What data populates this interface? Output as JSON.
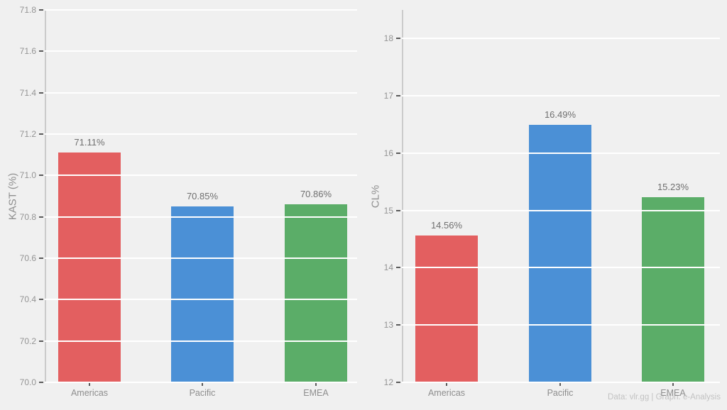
{
  "palette": {
    "background": "#f0f0f0",
    "grid": "#ffffff",
    "spine": "#cbcbcb",
    "tick_text": "#949494",
    "value_text": "#6f6f6f",
    "watermark_text": "#c2c2c2",
    "region_colors": {
      "Americas": "#e35f60",
      "Pacific": "#4b90d6",
      "EMEA": "#5bad68"
    }
  },
  "footer": {
    "text": "Data: vlr.gg | Graph: e-Analysis"
  },
  "chart_data": [
    {
      "type": "bar",
      "title": "",
      "xlabel": "",
      "ylabel": "KAST  (%)",
      "categories": [
        "Americas",
        "Pacific",
        "EMEA"
      ],
      "values": [
        71.11,
        70.85,
        70.86
      ],
      "value_labels": [
        "71.11%",
        "70.85%",
        "70.86%"
      ],
      "bar_colors": [
        "#e35f60",
        "#4b90d6",
        "#5bad68"
      ],
      "ylim": [
        70.0,
        71.8
      ],
      "yticks": [
        {
          "value": 70.0,
          "label": "70.0"
        },
        {
          "value": 70.2,
          "label": "70.2"
        },
        {
          "value": 70.4,
          "label": "70.4"
        },
        {
          "value": 70.6,
          "label": "70.6"
        },
        {
          "value": 70.8,
          "label": "70.8"
        },
        {
          "value": 71.0,
          "label": "71.0"
        },
        {
          "value": 71.2,
          "label": "71.2"
        },
        {
          "value": 71.4,
          "label": "71.4"
        },
        {
          "value": 71.6,
          "label": "71.6"
        },
        {
          "value": 71.8,
          "label": "71.8"
        }
      ],
      "grid": true,
      "grid_over_bars": true,
      "legend": "none"
    },
    {
      "type": "bar",
      "title": "",
      "xlabel": "",
      "ylabel": "CL%",
      "categories": [
        "Americas",
        "Pacific",
        "EMEA"
      ],
      "values": [
        14.56,
        16.49,
        15.23
      ],
      "value_labels": [
        "14.56%",
        "16.49%",
        "15.23%"
      ],
      "bar_colors": [
        "#e35f60",
        "#4b90d6",
        "#5bad68"
      ],
      "ylim": [
        12,
        18.5
      ],
      "yticks": [
        {
          "value": 12,
          "label": "12"
        },
        {
          "value": 13,
          "label": "13"
        },
        {
          "value": 14,
          "label": "14"
        },
        {
          "value": 15,
          "label": "15"
        },
        {
          "value": 16,
          "label": "16"
        },
        {
          "value": 17,
          "label": "17"
        },
        {
          "value": 18,
          "label": "18"
        }
      ],
      "grid": true,
      "grid_over_bars": true,
      "legend": "none"
    }
  ]
}
